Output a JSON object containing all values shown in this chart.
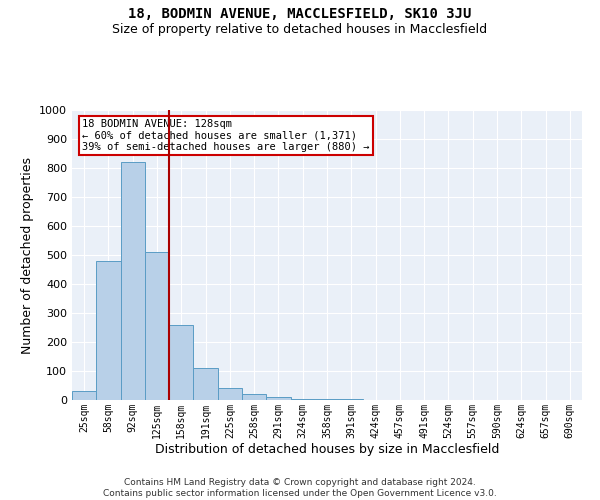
{
  "title": "18, BODMIN AVENUE, MACCLESFIELD, SK10 3JU",
  "subtitle": "Size of property relative to detached houses in Macclesfield",
  "xlabel": "Distribution of detached houses by size in Macclesfield",
  "ylabel": "Number of detached properties",
  "categories": [
    "25sqm",
    "58sqm",
    "92sqm",
    "125sqm",
    "158sqm",
    "191sqm",
    "225sqm",
    "258sqm",
    "291sqm",
    "324sqm",
    "358sqm",
    "391sqm",
    "424sqm",
    "457sqm",
    "491sqm",
    "524sqm",
    "557sqm",
    "590sqm",
    "624sqm",
    "657sqm",
    "690sqm"
  ],
  "values": [
    30,
    480,
    820,
    510,
    260,
    110,
    40,
    20,
    10,
    5,
    3,
    2,
    1,
    1,
    0,
    0,
    0,
    0,
    0,
    0,
    0
  ],
  "bar_color": "#b8d0e8",
  "bar_edge_color": "#5a9cc5",
  "background_color": "#eaf0f8",
  "grid_color": "#ffffff",
  "vline_color": "#aa0000",
  "vline_pos": 3.5,
  "annotation_text": "18 BODMIN AVENUE: 128sqm\n← 60% of detached houses are smaller (1,371)\n39% of semi-detached houses are larger (880) →",
  "annotation_box_color": "#cc0000",
  "ylim": [
    0,
    1000
  ],
  "yticks": [
    0,
    100,
    200,
    300,
    400,
    500,
    600,
    700,
    800,
    900,
    1000
  ],
  "footer_line1": "Contains HM Land Registry data © Crown copyright and database right 2024.",
  "footer_line2": "Contains public sector information licensed under the Open Government Licence v3.0.",
  "title_fontsize": 10,
  "subtitle_fontsize": 9,
  "ylabel_fontsize": 9,
  "xlabel_fontsize": 9
}
